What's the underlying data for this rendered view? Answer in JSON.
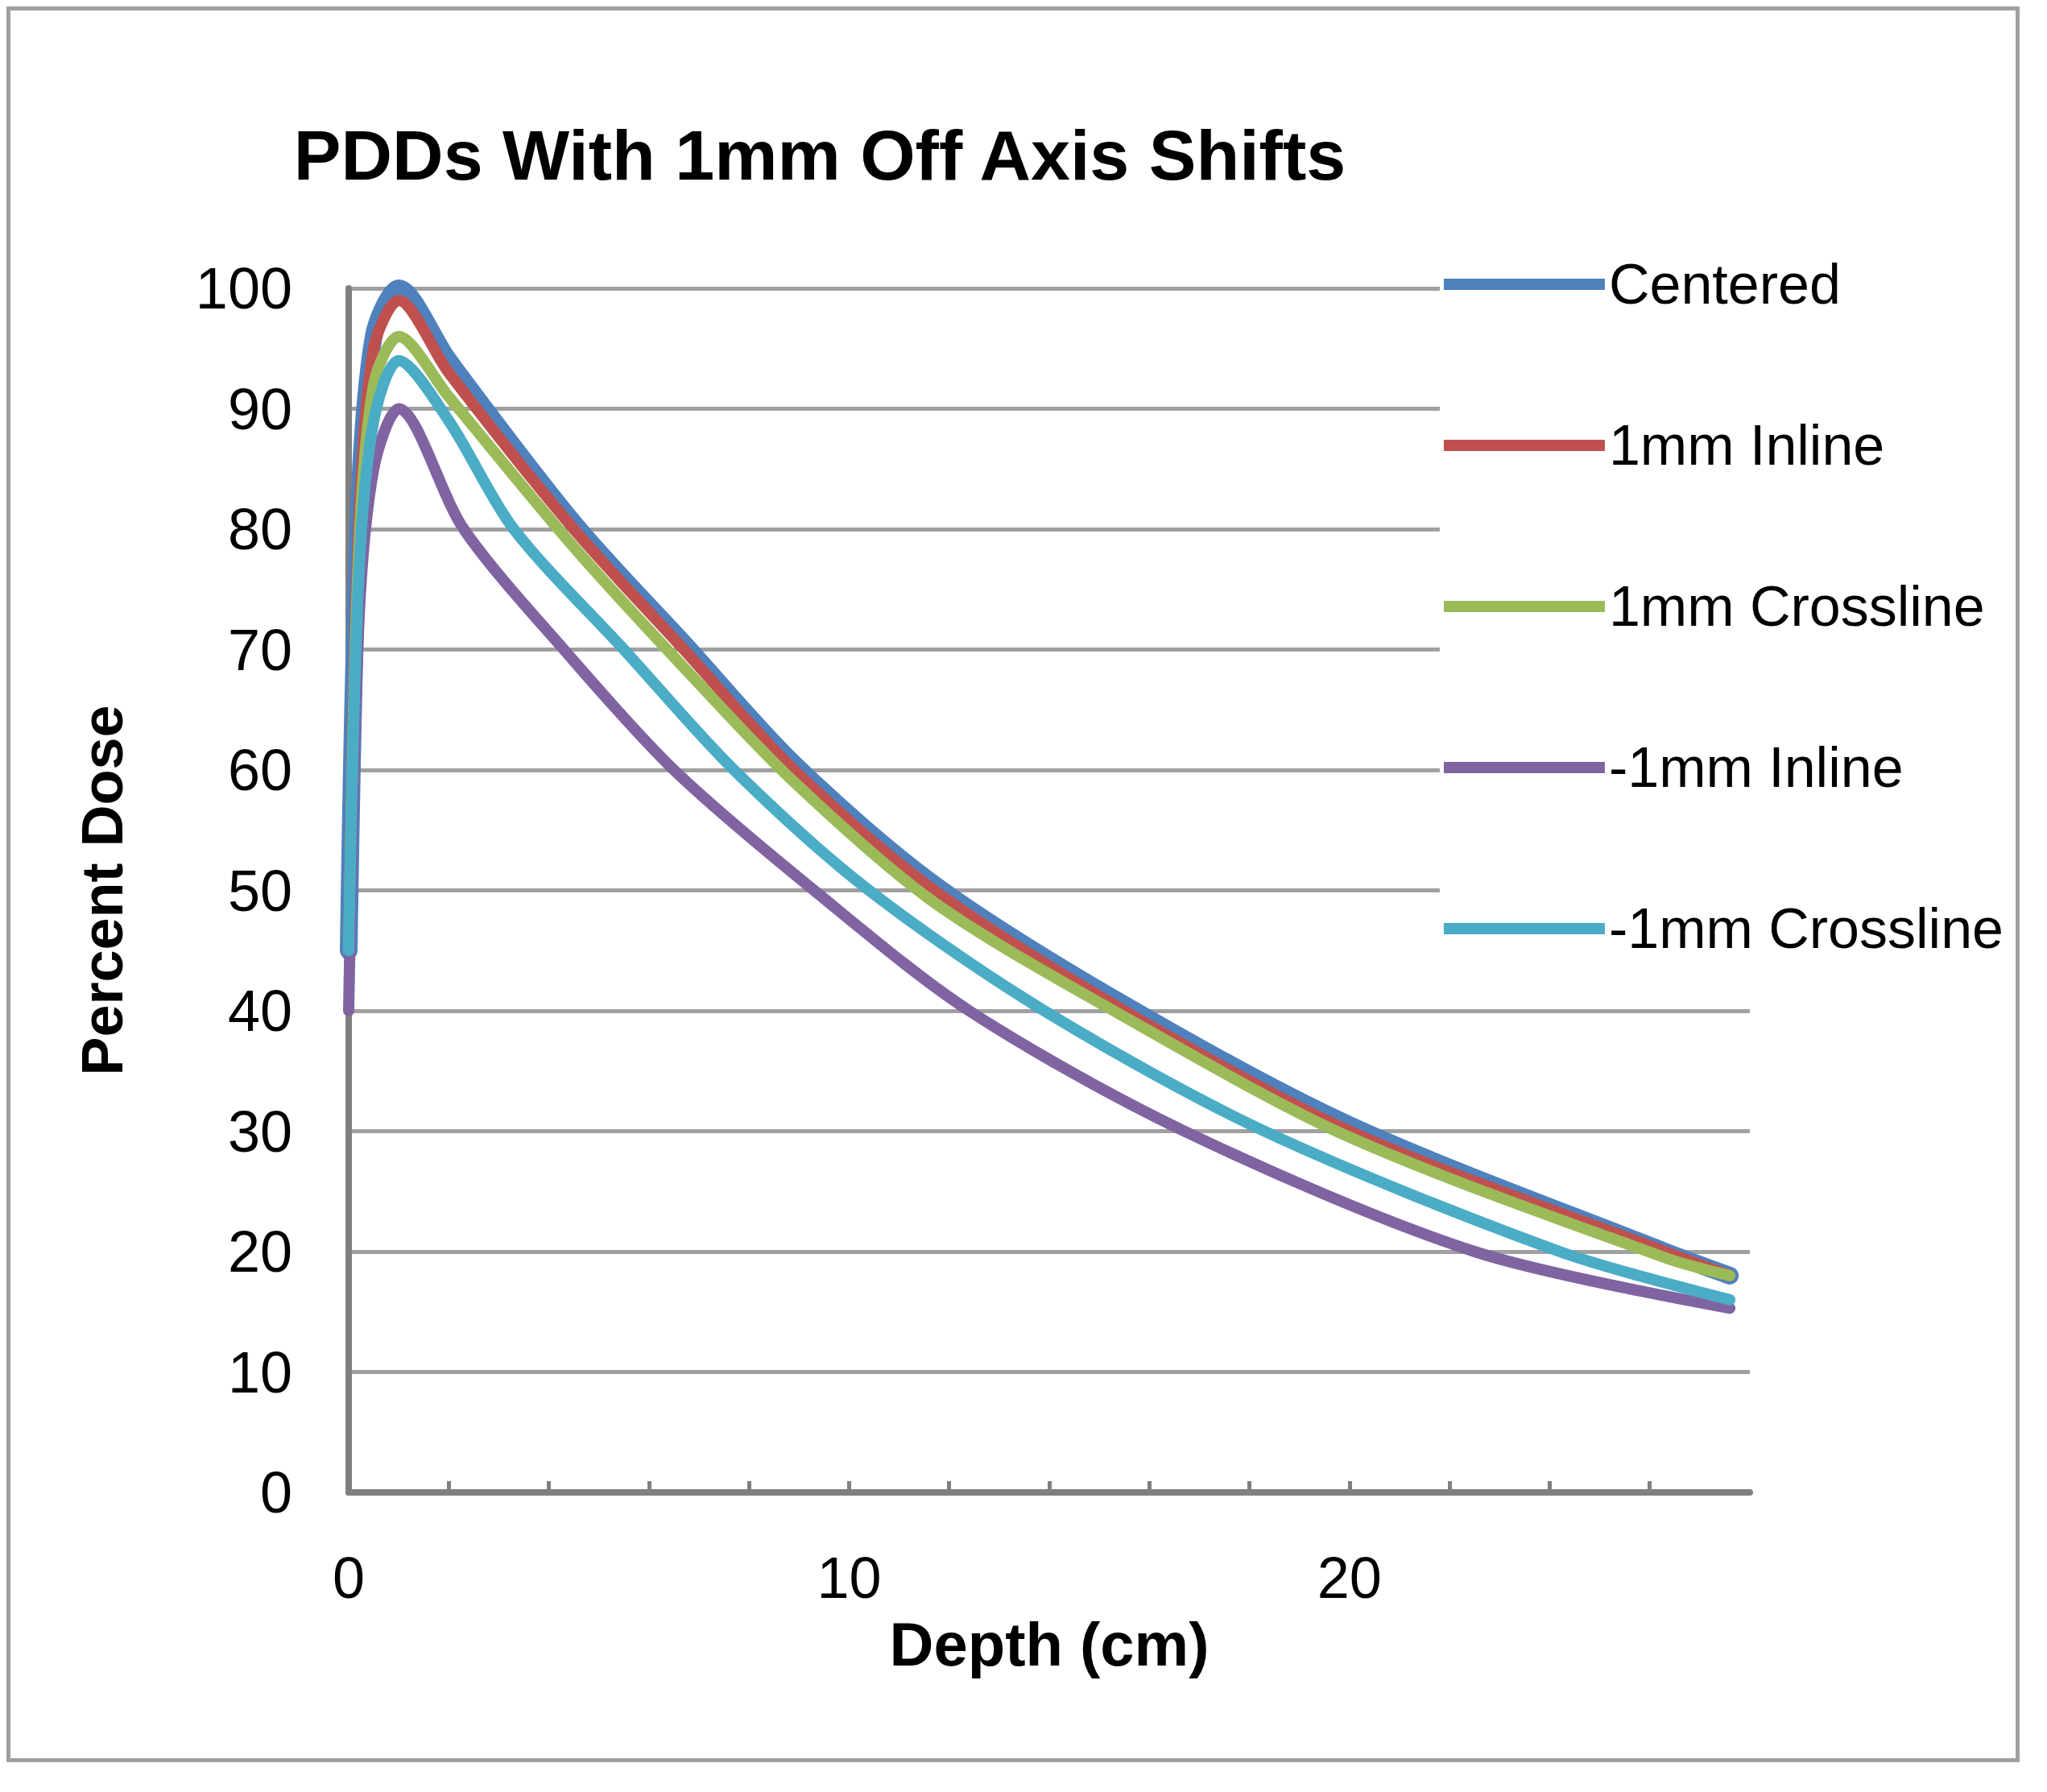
{
  "chart_data": {
    "type": "line",
    "title": "PDDs With 1mm Off Axis Shifts",
    "xlabel": "Depth (cm)",
    "ylabel": "Percent Dose",
    "xlim": [
      0,
      28
    ],
    "xticks": [
      0,
      {
        "value": 2,
        "label": null
      },
      {
        "value": 4,
        "label": null
      },
      {
        "value": 6,
        "label": null
      },
      {
        "value": 8,
        "label": null
      },
      10,
      {
        "value": 12,
        "label": null
      },
      {
        "value": 14,
        "label": null
      },
      {
        "value": 16,
        "label": null
      },
      {
        "value": 18,
        "label": null
      },
      20,
      {
        "value": 22,
        "label": null
      },
      {
        "value": 24,
        "label": null
      },
      {
        "value": 26,
        "label": null
      }
    ],
    "ylim": [
      0,
      100
    ],
    "yticks": [
      0,
      10,
      20,
      30,
      40,
      50,
      60,
      70,
      80,
      90,
      100
    ],
    "grid": "y",
    "legend": "top right",
    "marker": "none",
    "line_style": "solid",
    "series": [
      {
        "name": "Centered",
        "color": "#4f81bd",
        "x": [
          0,
          0.2,
          0.5,
          1,
          2,
          4.5,
          6.7,
          8.9,
          11.7,
          15.5,
          20,
          26.3,
          27.6
        ],
        "values": [
          45,
          81,
          96,
          100,
          94,
          80.5,
          70.5,
          60.5,
          50.5,
          40.5,
          30.5,
          20,
          18
        ]
      },
      {
        "name": "1mm Inline",
        "color": "#c0504d",
        "x": [
          0,
          0.2,
          0.5,
          1,
          2,
          4.5,
          6.7,
          8.9,
          11.7,
          15.5,
          20,
          26.3,
          27.6
        ],
        "values": [
          45,
          80,
          95,
          99,
          93,
          80,
          70,
          60,
          50,
          40,
          30,
          20,
          18
        ]
      },
      {
        "name": "1mm Crossline",
        "color": "#9bbb59",
        "x": [
          0,
          0.2,
          0.5,
          1,
          2,
          4.5,
          6.7,
          8.9,
          11.7,
          15.5,
          20,
          26.3,
          27.6
        ],
        "values": [
          45,
          78,
          92,
          96,
          91,
          78.5,
          68.5,
          59,
          49,
          39.5,
          29.5,
          19.5,
          18
        ]
      },
      {
        "name": "-1mm Inline",
        "color": "#8064a2",
        "x": [
          0,
          0.2,
          0.5,
          1,
          2.3,
          4.3,
          6.5,
          9.3,
          12.4,
          16.7,
          22.5,
          27.6
        ],
        "values": [
          40,
          72,
          85,
          90,
          80,
          70,
          60,
          50,
          40,
          30,
          20,
          15.3
        ]
      },
      {
        "name": "-1mm Crossline",
        "color": "#4bacc6",
        "x": [
          0,
          0.2,
          0.5,
          1,
          2,
          3.3,
          5.5,
          7.7,
          10.4,
          13.9,
          18.3,
          24.2,
          27.6
        ],
        "values": [
          45,
          76,
          89,
          94,
          89,
          80,
          70,
          60,
          50,
          40,
          30,
          20,
          16
        ]
      }
    ]
  }
}
